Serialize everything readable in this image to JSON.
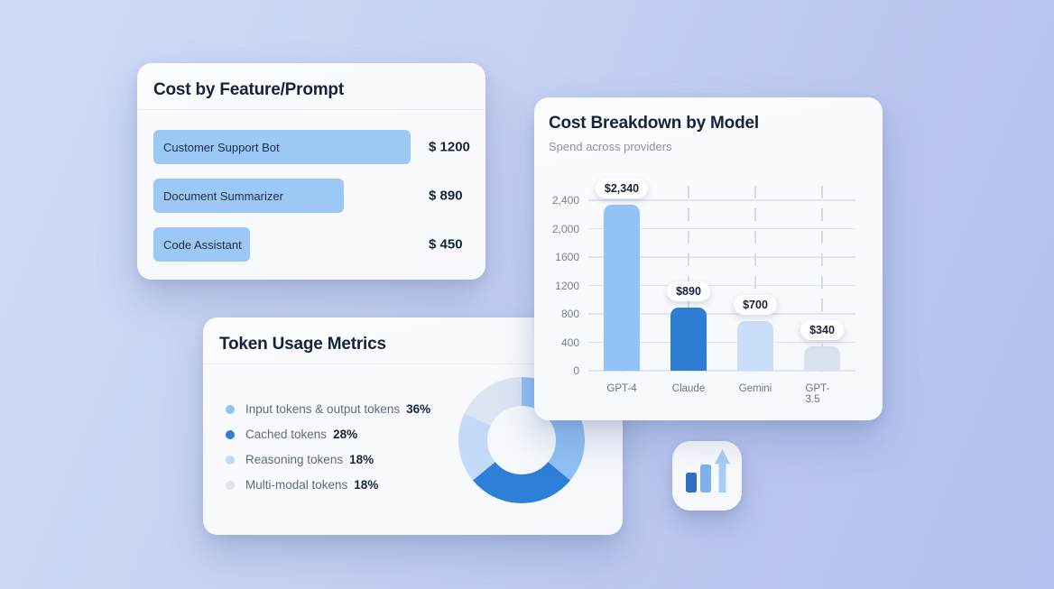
{
  "background": {
    "gradient_from": "#cfdbf7",
    "gradient_to": "#b5c1ee"
  },
  "chart_data": [
    {
      "id": "feature_cost",
      "type": "bar",
      "orientation": "horizontal",
      "title": "Cost by Feature/Prompt",
      "categories": [
        "Customer Support Bot",
        "Document Summarizer",
        "Code Assistant"
      ],
      "values": [
        1200,
        890,
        450
      ],
      "value_labels": [
        "$ 1200",
        "$ 890",
        "$ 450"
      ],
      "xlim": [
        0,
        1250
      ],
      "bar_color": "#9cc8f6",
      "grid": false,
      "legend_position": "none"
    },
    {
      "id": "model_cost",
      "type": "bar",
      "orientation": "vertical",
      "title": "Cost Breakdown by Model",
      "subtitle": "Spend across providers",
      "categories": [
        "GPT-4",
        "Claude",
        "Gemini",
        "GPT-3.5"
      ],
      "values": [
        2340,
        890,
        700,
        340
      ],
      "value_labels": [
        "$2,340",
        "$890",
        "$700",
        "$340"
      ],
      "bar_colors": [
        "#92c3f7",
        "#2e7ed6",
        "#cadef9",
        "#d8e1ed"
      ],
      "ylim": [
        0,
        2400
      ],
      "y_ticks": [
        {
          "value": 2400,
          "label": "2,400"
        },
        {
          "value": 2000,
          "label": "2,000"
        },
        {
          "value": 1600,
          "label": "1600"
        },
        {
          "value": 1200,
          "label": "1200"
        },
        {
          "value": 800,
          "label": "800"
        },
        {
          "value": 400,
          "label": "400"
        },
        {
          "value": 0,
          "label": "0"
        }
      ],
      "grid": true,
      "legend_position": "none"
    },
    {
      "id": "token_usage",
      "type": "pie",
      "donut": true,
      "title": "Token Usage Metrics",
      "start_angle_deg": 0,
      "segments": [
        {
          "label": "Input tokens & output tokens",
          "value": 36,
          "pct_label": "36%",
          "color": "#90c1f5"
        },
        {
          "label": "Cached tokens",
          "value": 28,
          "pct_label": "28%",
          "color": "#2e7fd7"
        },
        {
          "label": "Reasoning tokens",
          "value": 18,
          "pct_label": "18%",
          "color": "#c3d9f8"
        },
        {
          "label": "Multi-modal tokens",
          "value": 18,
          "pct_label": "18%",
          "color": "#dce5f2"
        }
      ],
      "legend_position": "left"
    }
  ],
  "stats_tile": {
    "icon": "bar-chart-growth-icon",
    "bar_colors": [
      "#2d6fc6",
      "#7fb2ed"
    ],
    "arrow_color": "#a9cdf5"
  }
}
